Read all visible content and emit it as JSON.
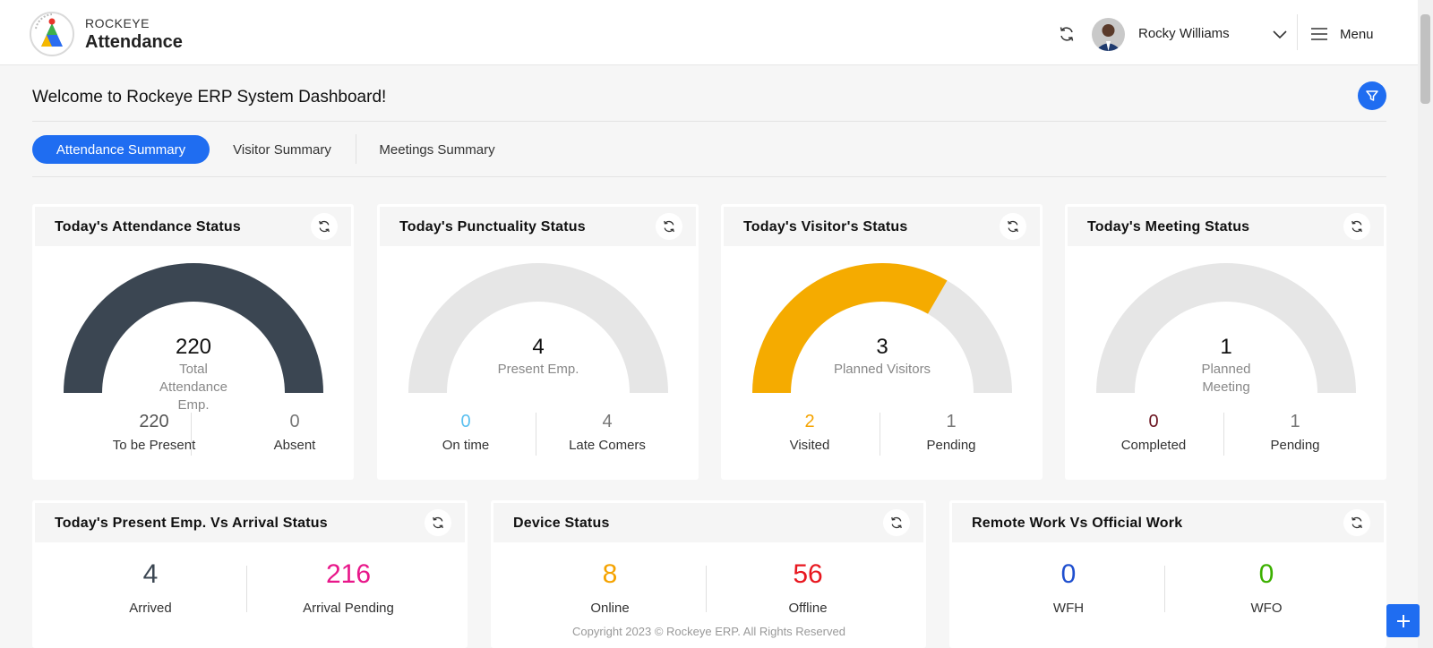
{
  "header": {
    "brand_top": "ROCKEYE",
    "brand_main": "Attendance",
    "user_name": "Rocky Williams",
    "menu_label": "Menu"
  },
  "welcome": "Welcome to Rockeye ERP System Dashboard!",
  "tabs": [
    {
      "label": "Attendance Summary",
      "active": true
    },
    {
      "label": "Visitor Summary",
      "active": false
    },
    {
      "label": "Meetings Summary",
      "active": false
    }
  ],
  "colors": {
    "accent": "#1f6df1",
    "gauge_dark": "#3b4652",
    "gauge_empty": "#e6e6e6",
    "gauge_orange": "#f5ab00",
    "on_time": "#5bc0f0",
    "visited": "#f5a300",
    "completed": "#6b1420",
    "arrival_pending": "#e8178a",
    "online": "#f5a300",
    "offline": "#e8171f",
    "wfh": "#1f4fcf",
    "wfo": "#3cb000"
  },
  "cards": {
    "attendance": {
      "title": "Today's Attendance Status",
      "gauge_value": "220",
      "gauge_label": "Total Attendance Emp.",
      "gauge_fill": 1.0,
      "left_value": "220",
      "left_label": "To be Present",
      "right_value": "0",
      "right_label": "Absent"
    },
    "punctuality": {
      "title": "Today's Punctuality Status",
      "gauge_value": "4",
      "gauge_label": "Present Emp.",
      "gauge_fill": 0.0,
      "left_value": "0",
      "left_label": "On time",
      "right_value": "4",
      "right_label": "Late Comers"
    },
    "visitor": {
      "title": "Today's Visitor's Status",
      "gauge_value": "3",
      "gauge_label": "Planned Visitors",
      "gauge_fill": 0.6667,
      "left_value": "2",
      "left_label": "Visited",
      "right_value": "1",
      "right_label": "Pending"
    },
    "meeting": {
      "title": "Today's Meeting Status",
      "gauge_value": "1",
      "gauge_label": "Planned Meeting",
      "gauge_fill": 0.0,
      "left_value": "0",
      "left_label": "Completed",
      "right_value": "1",
      "right_label": "Pending"
    },
    "arrival": {
      "title": "Today's Present Emp. Vs Arrival Status",
      "left_value": "4",
      "left_label": "Arrived",
      "right_value": "216",
      "right_label": "Arrival Pending"
    },
    "device": {
      "title": "Device Status",
      "left_value": "8",
      "left_label": "Online",
      "right_value": "56",
      "right_label": "Offline"
    },
    "remote": {
      "title": "Remote Work Vs Official Work",
      "left_value": "0",
      "left_label": "WFH",
      "right_value": "0",
      "right_label": "WFO"
    }
  },
  "copyright": "Copyright 2023 © Rockeye ERP. All Rights Reserved",
  "icons": {
    "refresh": "refresh-icon",
    "filter": "filter-icon",
    "menu": "hamburger-icon",
    "chevron": "chevron-down-icon",
    "add": "plus-icon"
  }
}
